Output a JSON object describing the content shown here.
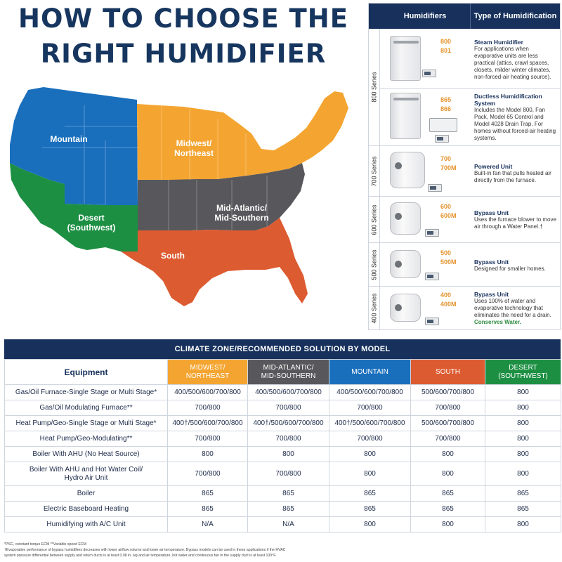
{
  "title": {
    "line1": "HOW TO CHOOSE THE",
    "line2": "RIGHT HUMIDIFIER"
  },
  "map": {
    "regions": [
      {
        "label_lines": [
          "Mountain"
        ],
        "color": "#1a6fbd"
      },
      {
        "label_lines": [
          "Midwest/",
          "Northeast"
        ],
        "color": "#f4a531"
      },
      {
        "label_lines": [
          "Desert",
          "(Southwest)"
        ],
        "color": "#1d8f43"
      },
      {
        "label_lines": [
          "Mid-Atlantic/",
          "Mid-Southern"
        ],
        "color": "#5a5a5e"
      },
      {
        "label_lines": [
          "South"
        ],
        "color": "#dd5b31"
      }
    ]
  },
  "humidifiers": {
    "headers": {
      "humidifiers": "Humidifiers",
      "type": "Type of Humidification"
    },
    "series": [
      "800 Series",
      "700 Series",
      "600 Series",
      "500 Series",
      "400 Series"
    ],
    "rows": [
      {
        "models": [
          "800",
          "801"
        ],
        "title": "Steam Humidifier",
        "desc": "For applications when evaporative units are less practical (attics, crawl spaces, closets, milder winter climates, non-forced-air heating source)."
      },
      {
        "models": [
          "865",
          "866"
        ],
        "title": "Ductless Humidification System",
        "desc": "Includes the Model 800, Fan Pack, Model 65 Control and Model 4028 Drain Trap. For homes without forced-air heating systems."
      },
      {
        "models": [
          "700",
          "700M"
        ],
        "title": "Powered Unit",
        "desc": "Built-in fan that pulls heated air directly from the furnace."
      },
      {
        "models": [
          "600",
          "600M"
        ],
        "title": "Bypass Unit",
        "desc": "Uses the furnace blower to move air through a Water Panel.†"
      },
      {
        "models": [
          "500",
          "500M"
        ],
        "title": "Bypass Unit",
        "desc": "Designed for smaller homes."
      },
      {
        "models": [
          "400",
          "400M"
        ],
        "title": "Bypass Unit",
        "desc": "Uses 100% of water and evaporative technology that eliminates the need for a drain.",
        "highlight": "Conserves Water."
      }
    ]
  },
  "climate": {
    "title": "CLIMATE ZONE/RECOMMENDED SOLUTION BY MODEL",
    "equipment_header": "Equipment",
    "zones": [
      {
        "lines": [
          "MIDWEST/",
          "NORTHEAST"
        ],
        "color": "#f4a531"
      },
      {
        "lines": [
          "MID-ATLANTIC/",
          "MID-SOUTHERN"
        ],
        "color": "#58585c"
      },
      {
        "lines": [
          "MOUNTAIN",
          ""
        ],
        "color": "#1a6fbd"
      },
      {
        "lines": [
          "SOUTH",
          ""
        ],
        "color": "#dd5b31"
      },
      {
        "lines": [
          "DESERT",
          "(SOUTHWEST)"
        ],
        "color": "#1d8f43"
      }
    ],
    "rows": [
      {
        "equipment": [
          "Gas/Oil Furnace-Single Stage or Multi Stage*"
        ],
        "values": [
          "400/500/600/700/800",
          "400/500/600/700/800",
          "400/500/600/700/800",
          "500/600/700/800",
          "800"
        ]
      },
      {
        "equipment": [
          "Gas/Oil Modulating Furnace**"
        ],
        "values": [
          "700/800",
          "700/800",
          "700/800",
          "700/800",
          "800"
        ]
      },
      {
        "equipment": [
          "Heat Pump/Geo-Single Stage or Multi Stage*"
        ],
        "values": [
          "400†/500/600/700/800",
          "400†/500/600/700/800",
          "400†/500/600/700/800",
          "500/600/700/800",
          "800"
        ]
      },
      {
        "equipment": [
          "Heat Pump/Geo-Modulating**"
        ],
        "values": [
          "700/800",
          "700/800",
          "700/800",
          "700/800",
          "800"
        ]
      },
      {
        "equipment": [
          "Boiler With AHU (No Heat Source)"
        ],
        "values": [
          "800",
          "800",
          "800",
          "800",
          "800"
        ]
      },
      {
        "equipment": [
          "Boiler With AHU and Hot Water Coil/",
          "Hydro Air Unit"
        ],
        "values": [
          "700/800",
          "700/800",
          "800",
          "800",
          "800"
        ]
      },
      {
        "equipment": [
          "Boiler"
        ],
        "values": [
          "865",
          "865",
          "865",
          "865",
          "865"
        ]
      },
      {
        "equipment": [
          "Electric Baseboard Heating"
        ],
        "values": [
          "865",
          "865",
          "865",
          "865",
          "865"
        ]
      },
      {
        "equipment": [
          "Humidifying with A/C Unit"
        ],
        "values": [
          "N/A",
          "N/A",
          "800",
          "800",
          "800"
        ]
      }
    ]
  },
  "footnotes": [
    "*PSC, constant torque ECM   **Variable speed ECM",
    "†Evaporative performance of bypass humidifiers decreases with lower airflow volume and lower air temperature. Bypass models can be used in these applications if the HVAC",
    "system pressure differential between supply and return ducts is at least 0.08 in. wg and air temperature, hot water and continuous fan in the supply duct is at least 100°F."
  ]
}
